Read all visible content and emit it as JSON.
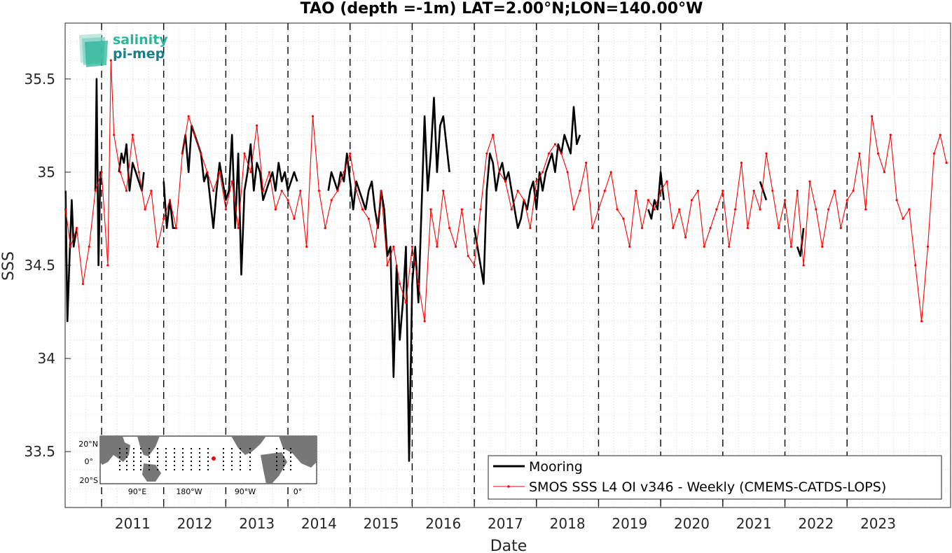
{
  "chart_data": {
    "type": "line",
    "title": "TAO (depth =-1m) LAT=2.00°N;LON=140.00°W",
    "xlabel": "Date",
    "ylabel": "SSS",
    "x_tick_labels": [
      "2011",
      "2012",
      "2013",
      "2014",
      "2015",
      "2016",
      "2017",
      "2018",
      "2019",
      "2020",
      "2021",
      "2022",
      "2023"
    ],
    "y_tick_labels": [
      "33.5",
      "34",
      "34.5",
      "35",
      "35.5"
    ],
    "xlim": [
      "2010-06-01",
      "2024-09-01"
    ],
    "ylim": [
      33.2,
      35.8
    ],
    "grid": true,
    "legend_position": "bottom-right",
    "series": [
      {
        "name": "Mooring",
        "color": "#000000",
        "x": [
          2010.42,
          2010.45,
          2010.48,
          2010.52,
          2010.55,
          2010.6,
          null,
          2010.9,
          2010.92,
          2010.95,
          2010.98,
          2011.0,
          null,
          2011.28,
          2011.32,
          2011.36,
          2011.4,
          2011.45,
          2011.5,
          2011.55,
          2011.6,
          2011.65,
          2011.68,
          null,
          2012.0,
          2012.05,
          2012.1,
          2012.15,
          2012.2,
          null,
          2012.3,
          2012.35,
          2012.4,
          2012.45,
          2012.5,
          2012.55,
          2012.6,
          2012.65,
          2012.7,
          2012.75,
          2012.8,
          2012.85,
          2012.9,
          2012.95,
          2013.0,
          2013.05,
          2013.1,
          2013.15,
          2013.2,
          2013.25,
          2013.3,
          2013.35,
          2013.4,
          2013.45,
          2013.5,
          2013.55,
          2013.6,
          2013.65,
          2013.7,
          2013.75,
          2013.8,
          2013.85,
          2013.9,
          2013.95,
          2014.0,
          2014.05,
          2014.1,
          2014.15,
          null,
          2014.65,
          2014.7,
          2014.75,
          2014.8,
          2014.85,
          2014.9,
          2014.95,
          2015.0,
          2015.05,
          2015.1,
          2015.15,
          2015.2,
          2015.25,
          2015.3,
          2015.35,
          2015.4,
          2015.45,
          2015.5,
          2015.55,
          2015.6,
          2015.65,
          2015.7,
          2015.75,
          2015.8,
          2015.85,
          2015.9,
          2015.95,
          2016.0,
          2016.05,
          2016.1,
          2016.15,
          2016.2,
          2016.25,
          2016.3,
          2016.35,
          2016.4,
          2016.45,
          2016.5,
          2016.55,
          2016.6,
          null,
          2017.0,
          2017.05,
          2017.1,
          2017.15,
          2017.2,
          2017.25,
          2017.3,
          2017.35,
          2017.4,
          2017.45,
          2017.5,
          2017.55,
          2017.6,
          2017.65,
          2017.7,
          2017.75,
          2017.8,
          2017.85,
          2017.9,
          2017.95,
          2018.0,
          2018.05,
          2018.1,
          2018.15,
          2018.2,
          2018.25,
          2018.3,
          2018.35,
          2018.4,
          2018.45,
          2018.5,
          2018.55,
          2018.6,
          2018.65,
          2018.7,
          null,
          2019.8,
          2019.85,
          2019.9,
          2019.95,
          2020.0,
          2020.05,
          null,
          2021.6,
          2021.65,
          2021.7,
          null,
          2022.2,
          2022.25,
          2022.3
        ],
        "y": [
          34.9,
          34.2,
          34.5,
          34.85,
          34.6,
          34.7,
          null,
          34.9,
          35.5,
          34.5,
          35.0,
          35.0,
          null,
          35.0,
          35.1,
          35.05,
          35.15,
          34.9,
          35.05,
          35.0,
          34.95,
          34.9,
          35.0,
          null,
          34.95,
          34.7,
          34.85,
          34.7,
          34.7,
          null,
          35.1,
          35.2,
          35.0,
          35.25,
          35.2,
          35.15,
          35.1,
          34.95,
          35.0,
          34.85,
          34.7,
          34.9,
          35.05,
          34.95,
          34.85,
          34.9,
          35.2,
          34.7,
          35.1,
          34.45,
          34.9,
          35.0,
          35.15,
          34.9,
          35.05,
          35.0,
          34.85,
          34.9,
          34.95,
          35.0,
          34.9,
          35.05,
          34.95,
          35.0,
          34.9,
          34.95,
          35.0,
          34.95,
          null,
          34.9,
          35.0,
          34.95,
          34.9,
          35.0,
          34.95,
          35.1,
          34.95,
          34.8,
          34.95,
          34.9,
          34.85,
          34.8,
          34.9,
          34.95,
          34.8,
          34.7,
          34.9,
          34.8,
          34.55,
          34.6,
          33.9,
          34.5,
          34.1,
          34.3,
          34.6,
          33.45,
          34.4,
          34.6,
          34.3,
          34.8,
          35.3,
          34.9,
          35.1,
          35.4,
          35.0,
          35.25,
          35.3,
          35.15,
          35.0,
          null,
          34.7,
          34.6,
          34.5,
          34.4,
          34.9,
          35.1,
          35.05,
          34.9,
          35.0,
          35.05,
          34.95,
          35.0,
          34.9,
          34.8,
          34.7,
          34.75,
          34.85,
          34.8,
          34.9,
          34.95,
          34.8,
          35.0,
          34.9,
          35.0,
          35.05,
          35.1,
          35.0,
          35.15,
          35.1,
          35.2,
          35.15,
          35.1,
          35.35,
          35.15,
          35.2,
          null,
          34.8,
          34.75,
          34.85,
          34.8,
          35.0,
          34.85,
          null,
          34.95,
          34.9,
          34.85,
          null,
          34.6,
          34.55,
          34.7
        ]
      },
      {
        "name": "SMOS SSS L4 OI v346 - Weekly (CMEMS-CATDS-LOPS)",
        "color": "#ff0000",
        "x": [
          2010.42,
          2010.5,
          2010.6,
          2010.7,
          2010.8,
          2010.9,
          2011.0,
          2011.1,
          2011.15,
          2011.2,
          2011.3,
          2011.4,
          2011.5,
          2011.6,
          2011.7,
          2011.8,
          2011.9,
          2012.0,
          2012.1,
          2012.2,
          2012.3,
          2012.4,
          2012.5,
          2012.6,
          2012.7,
          2012.8,
          2012.9,
          2013.0,
          2013.1,
          2013.2,
          2013.3,
          2013.4,
          2013.5,
          2013.6,
          2013.7,
          2013.8,
          2013.9,
          2014.0,
          2014.1,
          2014.2,
          2014.3,
          2014.4,
          2014.5,
          2014.6,
          2014.7,
          2014.8,
          2014.9,
          2015.0,
          2015.1,
          2015.2,
          2015.3,
          2015.4,
          2015.5,
          2015.6,
          2015.7,
          2015.8,
          2015.9,
          2016.0,
          2016.1,
          2016.2,
          2016.3,
          2016.4,
          2016.5,
          2016.6,
          2016.7,
          2016.8,
          2016.9,
          2017.0,
          2017.1,
          2017.2,
          2017.3,
          2017.4,
          2017.5,
          2017.6,
          2017.7,
          2017.8,
          2017.9,
          2018.0,
          2018.1,
          2018.2,
          2018.3,
          2018.4,
          2018.5,
          2018.6,
          2018.7,
          2018.8,
          2018.9,
          2019.0,
          2019.1,
          2019.2,
          2019.3,
          2019.4,
          2019.5,
          2019.6,
          2019.7,
          2019.8,
          2019.9,
          2020.0,
          2020.1,
          2020.2,
          2020.3,
          2020.4,
          2020.5,
          2020.6,
          2020.7,
          2020.8,
          2020.9,
          2021.0,
          2021.1,
          2021.2,
          2021.3,
          2021.4,
          2021.5,
          2021.6,
          2021.7,
          2021.8,
          2021.9,
          2022.0,
          2022.1,
          2022.2,
          2022.3,
          2022.4,
          2022.5,
          2022.6,
          2022.7,
          2022.8,
          2022.9,
          2023.0,
          2023.1,
          2023.2,
          2023.3,
          2023.4,
          2023.5,
          2023.6,
          2023.7,
          2023.8,
          2023.9,
          2024.0,
          2024.1,
          2024.2,
          2024.3,
          2024.4,
          2024.5,
          2024.6
        ],
        "y": [
          34.8,
          34.6,
          34.7,
          34.4,
          34.6,
          34.9,
          35.0,
          34.5,
          35.6,
          35.2,
          35.0,
          34.9,
          35.2,
          35.0,
          34.8,
          34.9,
          34.6,
          34.75,
          34.85,
          34.7,
          35.1,
          35.3,
          35.2,
          35.1,
          35.0,
          34.9,
          35.0,
          34.8,
          34.95,
          34.7,
          35.1,
          35.0,
          35.25,
          34.9,
          35.0,
          34.8,
          34.9,
          34.85,
          34.75,
          34.9,
          34.6,
          35.3,
          34.9,
          34.7,
          34.85,
          34.9,
          35.0,
          35.1,
          34.9,
          34.8,
          34.75,
          34.6,
          34.9,
          34.5,
          34.6,
          34.4,
          34.3,
          34.6,
          34.4,
          34.2,
          34.8,
          34.6,
          34.9,
          34.7,
          34.6,
          34.8,
          34.55,
          34.5,
          34.8,
          35.1,
          35.2,
          35.0,
          34.95,
          34.8,
          34.9,
          34.85,
          34.7,
          34.95,
          35.0,
          35.1,
          35.15,
          35.1,
          35.0,
          34.8,
          34.9,
          35.05,
          34.7,
          34.8,
          34.9,
          35.0,
          34.8,
          34.75,
          34.6,
          34.9,
          34.7,
          34.85,
          34.8,
          34.9,
          34.95,
          34.7,
          34.8,
          34.65,
          34.85,
          34.9,
          34.6,
          34.7,
          34.8,
          34.9,
          34.6,
          34.8,
          35.05,
          34.7,
          34.9,
          34.8,
          35.1,
          34.9,
          34.7,
          34.85,
          34.6,
          34.9,
          34.5,
          34.95,
          34.8,
          34.6,
          34.8,
          34.9,
          34.7,
          34.85,
          34.9,
          35.1,
          34.8,
          35.3,
          35.1,
          35.0,
          35.2,
          34.85,
          34.75,
          34.8,
          34.5,
          34.2,
          34.6,
          35.1,
          35.2,
          35.05
        ]
      }
    ],
    "inset_map": {
      "ylabels": [
        "20°N",
        "0°",
        "20°S"
      ],
      "xlabels": [
        "90°E",
        "180°W",
        "90°W",
        "0°"
      ]
    }
  },
  "logo": {
    "line1": "salinity",
    "line2": "pi-mep"
  }
}
